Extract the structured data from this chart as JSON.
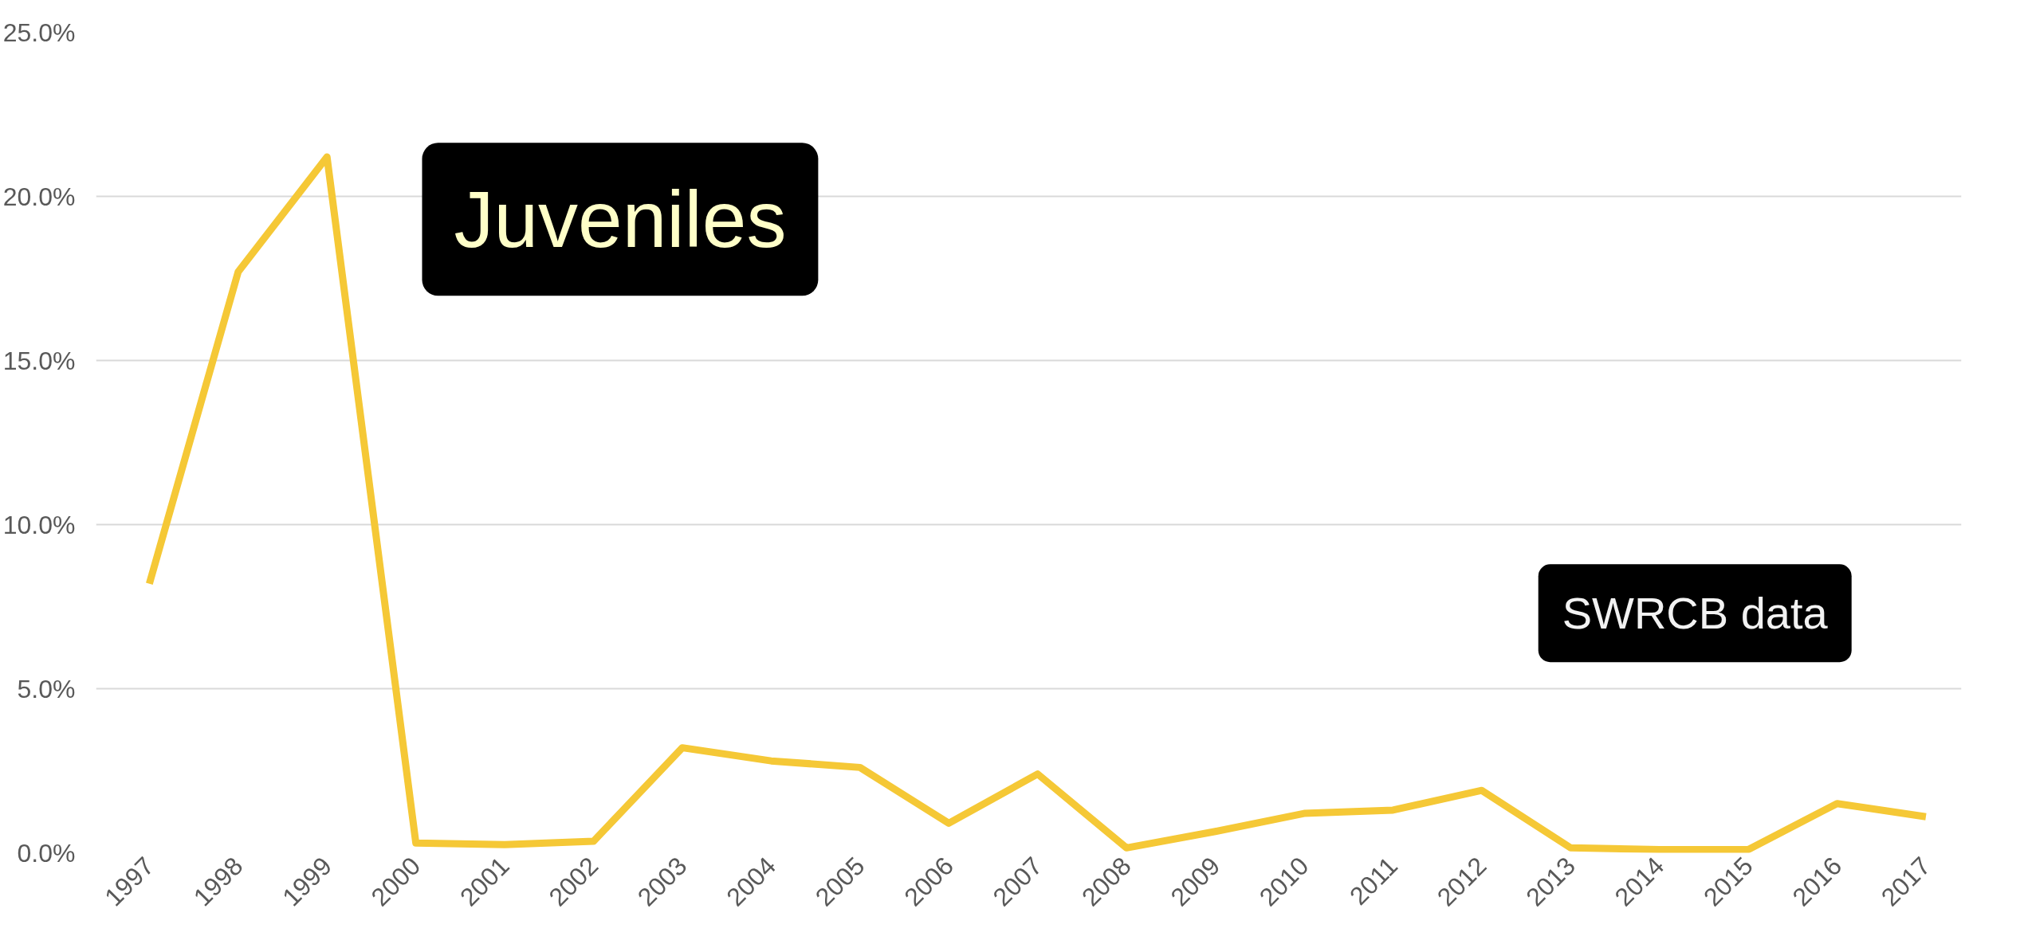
{
  "chart_data": {
    "type": "line",
    "title": "Juveniles",
    "annotations": [
      "SWRCB data"
    ],
    "categories": [
      "1997",
      "1998",
      "1999",
      "2000",
      "2001",
      "2002",
      "2003",
      "2004",
      "2005",
      "2006",
      "2007",
      "2008",
      "2009",
      "2010",
      "2011",
      "2012",
      "2013",
      "2014",
      "2015",
      "2016",
      "2017"
    ],
    "series": [
      {
        "color": "#f5c836",
        "values": [
          8.2,
          17.7,
          21.2,
          0.3,
          0.25,
          0.35,
          3.2,
          2.8,
          2.6,
          0.9,
          2.4,
          0.15,
          0.65,
          1.2,
          1.3,
          1.9,
          0.15,
          0.1,
          0.1,
          1.5,
          1.1
        ]
      }
    ],
    "ylim": [
      0,
      25
    ],
    "yticks": [
      {
        "value": 0,
        "label": "0.0%"
      },
      {
        "value": 5,
        "label": "5.0%"
      },
      {
        "value": 10,
        "label": "10.0%"
      },
      {
        "value": 15,
        "label": "15.0%"
      },
      {
        "value": 20,
        "label": "20.0%"
      },
      {
        "value": 25,
        "label": "25.0%"
      }
    ],
    "grid": "y",
    "marker": "none",
    "line_style": "solid"
  }
}
